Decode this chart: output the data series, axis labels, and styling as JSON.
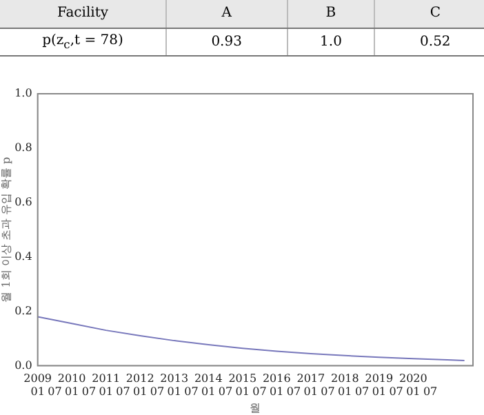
{
  "chart_data": {
    "type": "line",
    "xlabel": "월",
    "ylabel": "월 1회 이상 초과 유입 확률 p",
    "annotations": [
      "Facility",
      "A",
      "B",
      "C",
      "p(z$_{c}$,t = 78)",
      "0.93",
      "1.0",
      "0.52"
    ],
    "x": [
      "2009-01",
      "2010-01",
      "2011-01",
      "2012-01",
      "2013-01",
      "2014-01",
      "2015-01",
      "2016-01",
      "2017-01",
      "2018-01",
      "2019-01",
      "2020-01",
      "2021-01",
      "2021-07"
    ],
    "series": [
      {
        "color": "#7777bb",
        "values": [
          0.18,
          0.155,
          0.13,
          0.11,
          0.092,
          0.077,
          0.064,
          0.053,
          0.044,
          0.037,
          0.031,
          0.026,
          0.021,
          0.019
        ]
      }
    ],
    "xlim": [
      "2009-01",
      "2021-10"
    ],
    "xticks": [
      {
        "value": "2009-01",
        "label": "2009\n01"
      },
      {
        "value": "2009-07",
        "label": "\n07"
      },
      {
        "value": "2010-01",
        "label": "2010\n01"
      },
      {
        "value": "2010-07",
        "label": "\n07"
      },
      {
        "value": "2011-01",
        "label": "2011\n01"
      },
      {
        "value": "2011-07",
        "label": "\n07"
      },
      {
        "value": "2012-01",
        "label": "2012\n01"
      },
      {
        "value": "2012-07",
        "label": "\n07"
      },
      {
        "value": "2013-01",
        "label": "2013\n01"
      },
      {
        "value": "2013-07",
        "label": "\n07"
      },
      {
        "value": "2014-01",
        "label": "2014\n01"
      },
      {
        "value": "2014-07",
        "label": "\n07"
      },
      {
        "value": "2015-01",
        "label": "2015\n01"
      },
      {
        "value": "2015-07",
        "label": "\n07"
      },
      {
        "value": "2016-01",
        "label": "2016\n01"
      },
      {
        "value": "2016-07",
        "label": "\n07"
      },
      {
        "value": "2017-01",
        "label": "2017\n01"
      },
      {
        "value": "2017-07",
        "label": "\n07"
      },
      {
        "value": "2018-01",
        "label": "2018\n01"
      },
      {
        "value": "2018-07",
        "label": "\n07"
      },
      {
        "value": "2019-01",
        "label": "2019\n01"
      },
      {
        "value": "2019-07",
        "label": "\n07"
      },
      {
        "value": "2020-01",
        "label": "2020\n01"
      },
      {
        "value": "2020-07",
        "label": "\n07"
      }
    ],
    "ylim": [
      0,
      1
    ],
    "yticks": [
      {
        "value": 0,
        "label": "0.0"
      },
      0.2,
      0.4,
      0.6,
      0.8,
      {
        "value": 1,
        "label": "1.0"
      }
    ],
    "grid": false,
    "legend": false,
    "marker": "none",
    "line_style": "solid"
  }
}
